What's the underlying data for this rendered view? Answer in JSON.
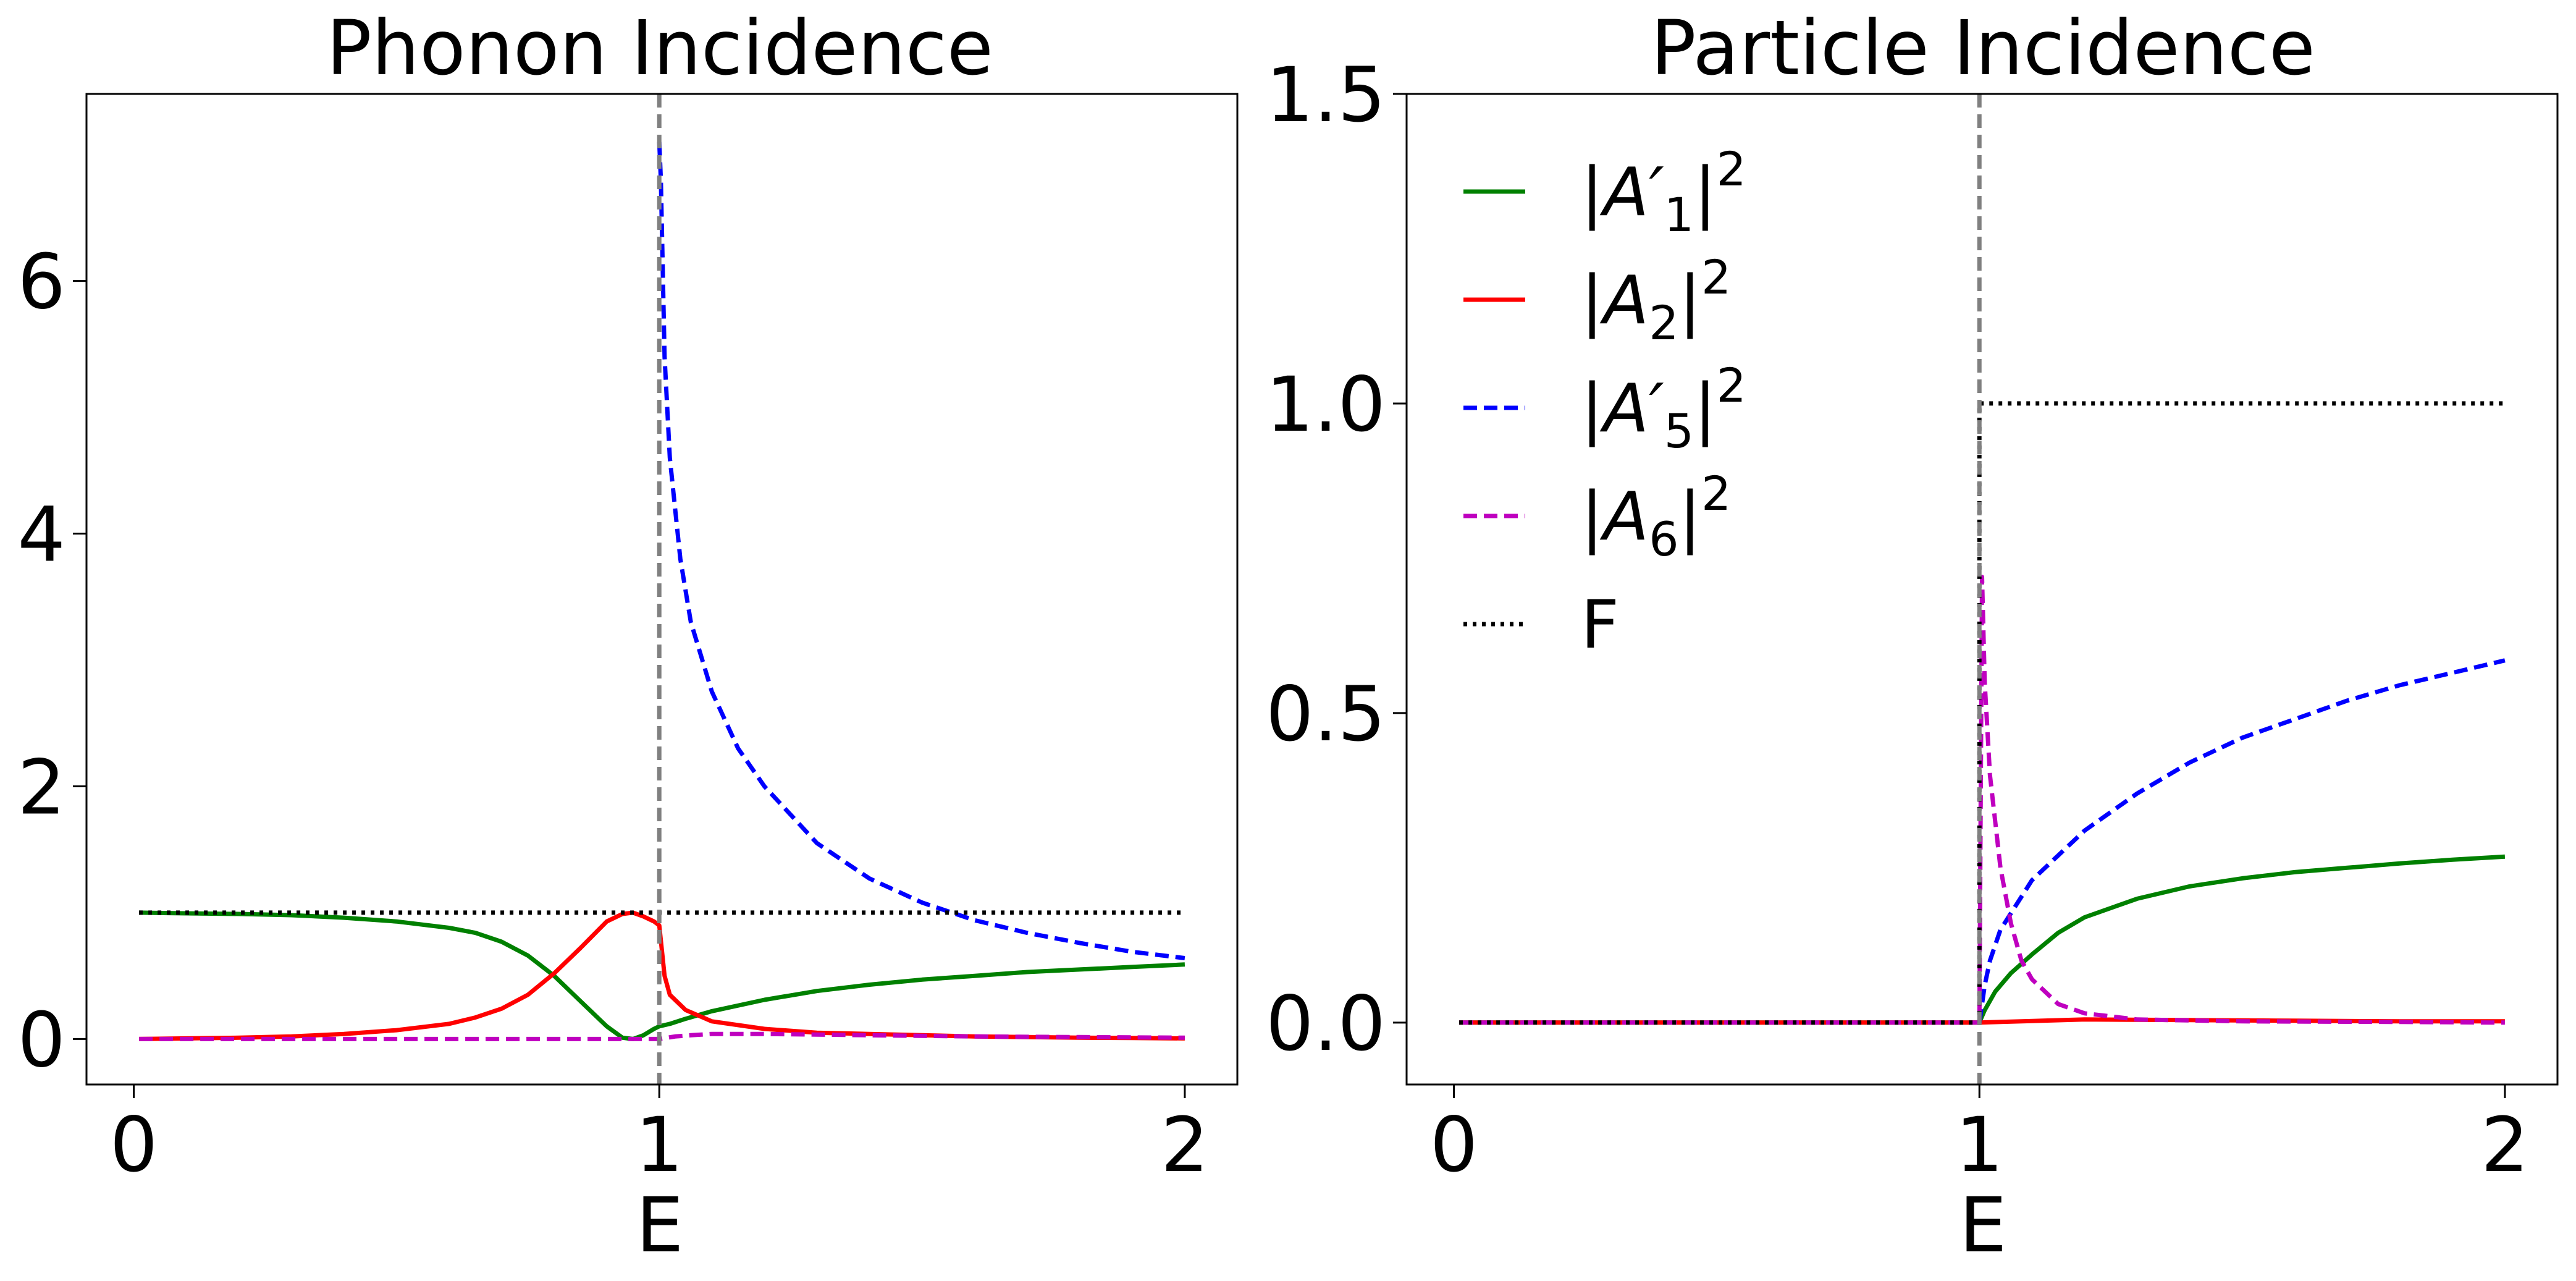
{
  "chart_data": [
    {
      "type": "line",
      "title": "Phonon Incidence",
      "xlabel": "E",
      "ylabel": "",
      "xlim": [
        -0.09,
        2.1
      ],
      "ylim": [
        -0.36,
        7.48
      ],
      "xticks": [
        0,
        1,
        2
      ],
      "xtick_labels": [
        "0",
        "1",
        "2"
      ],
      "yticks": [
        0,
        2,
        4,
        6
      ],
      "ytick_labels": [
        "0",
        "2",
        "4",
        "6"
      ],
      "vline": {
        "x": 1.0,
        "color": "#808080",
        "style": "dashed"
      },
      "legend": null,
      "series": [
        {
          "name": "|A'1|^2",
          "color": "#008000",
          "style": "solid",
          "x": [
            0.01,
            0.1,
            0.2,
            0.3,
            0.4,
            0.5,
            0.6,
            0.65,
            0.7,
            0.75,
            0.8,
            0.85,
            0.9,
            0.93,
            0.95,
            0.97,
            0.99,
            1.0,
            1.02,
            1.05,
            1.1,
            1.2,
            1.3,
            1.4,
            1.5,
            1.6,
            1.7,
            1.8,
            1.9,
            2.0
          ],
          "y": [
            1.0,
            0.995,
            0.99,
            0.98,
            0.96,
            0.93,
            0.88,
            0.84,
            0.77,
            0.66,
            0.5,
            0.3,
            0.1,
            0.01,
            0.0,
            0.03,
            0.08,
            0.1,
            0.12,
            0.16,
            0.22,
            0.31,
            0.38,
            0.43,
            0.47,
            0.5,
            0.53,
            0.55,
            0.57,
            0.59
          ]
        },
        {
          "name": "|A2|^2",
          "color": "#ff0000",
          "style": "solid",
          "x": [
            0.01,
            0.1,
            0.2,
            0.3,
            0.4,
            0.5,
            0.6,
            0.65,
            0.7,
            0.75,
            0.8,
            0.85,
            0.9,
            0.93,
            0.95,
            0.97,
            0.99,
            1.0,
            1.01,
            1.02,
            1.05,
            1.1,
            1.2,
            1.3,
            1.4,
            1.5,
            1.6,
            1.7,
            1.8,
            1.9,
            2.0
          ],
          "y": [
            0.0,
            0.005,
            0.01,
            0.02,
            0.04,
            0.07,
            0.12,
            0.17,
            0.24,
            0.35,
            0.52,
            0.72,
            0.93,
            0.99,
            1.0,
            0.97,
            0.93,
            0.9,
            0.5,
            0.35,
            0.23,
            0.14,
            0.08,
            0.05,
            0.04,
            0.03,
            0.02,
            0.015,
            0.01,
            0.008,
            0.005
          ]
        },
        {
          "name": "|A'5|^2",
          "color": "#0000ff",
          "style": "dashed",
          "x": [
            1.0,
            1.003,
            1.01,
            1.02,
            1.04,
            1.06,
            1.1,
            1.15,
            1.2,
            1.3,
            1.4,
            1.5,
            1.6,
            1.7,
            1.8,
            1.9,
            2.0
          ],
          "y": [
            7.1,
            6.8,
            5.4,
            4.6,
            3.8,
            3.3,
            2.75,
            2.3,
            2.0,
            1.55,
            1.27,
            1.08,
            0.94,
            0.84,
            0.76,
            0.69,
            0.64
          ]
        },
        {
          "name": "|A6|^2",
          "color": "#bf00bf",
          "style": "dashed",
          "x": [
            0.01,
            0.5,
            0.95,
            1.0,
            1.03,
            1.06,
            1.1,
            1.2,
            1.3,
            1.4,
            1.6,
            1.8,
            2.0
          ],
          "y": [
            0.0,
            0.0,
            0.0,
            0.0,
            0.02,
            0.03,
            0.04,
            0.04,
            0.035,
            0.03,
            0.02,
            0.015,
            0.01
          ]
        },
        {
          "name": "F",
          "color": "#000000",
          "style": "dotted",
          "x": [
            0.01,
            2.0
          ],
          "y": [
            1.0,
            1.0
          ]
        }
      ]
    },
    {
      "type": "line",
      "title": "Particle Incidence",
      "xlabel": "E",
      "ylabel": "",
      "xlim": [
        -0.09,
        2.1
      ],
      "ylim": [
        -0.1,
        1.5
      ],
      "xticks": [
        0,
        1,
        2
      ],
      "xtick_labels": [
        "0",
        "1",
        "2"
      ],
      "yticks": [
        0.0,
        0.5,
        1.0,
        1.5
      ],
      "ytick_labels": [
        "0.0",
        "0.5",
        "1.0",
        "1.5"
      ],
      "vline": {
        "x": 1.0,
        "color": "#808080",
        "style": "dashed"
      },
      "legend": {
        "location": "upper-left",
        "entries": [
          {
            "base": "|A′",
            "sub": "1",
            "tail": "|",
            "sup": "2"
          },
          {
            "base": "|A",
            "sub": "2",
            "tail": "|",
            "sup": "2"
          },
          {
            "base": "|A′",
            "sub": "5",
            "tail": "|",
            "sup": "2"
          },
          {
            "base": "|A",
            "sub": "6",
            "tail": "|",
            "sup": "2"
          },
          {
            "base": "F",
            "sub": "",
            "tail": "",
            "sup": ""
          }
        ]
      },
      "series": [
        {
          "name": "|A'1|^2",
          "color": "#008000",
          "style": "solid",
          "x": [
            0.01,
            1.0,
            1.01,
            1.03,
            1.06,
            1.1,
            1.15,
            1.2,
            1.3,
            1.4,
            1.5,
            1.6,
            1.7,
            1.8,
            1.9,
            2.0
          ],
          "y": [
            0.0,
            0.0,
            0.02,
            0.05,
            0.08,
            0.11,
            0.145,
            0.17,
            0.2,
            0.22,
            0.233,
            0.243,
            0.25,
            0.257,
            0.263,
            0.268
          ]
        },
        {
          "name": "|A2|^2",
          "color": "#ff0000",
          "style": "solid",
          "x": [
            0.01,
            1.0,
            1.2,
            1.4,
            1.6,
            1.8,
            2.0
          ],
          "y": [
            0.0,
            0.0,
            0.005,
            0.004,
            0.003,
            0.002,
            0.002
          ]
        },
        {
          "name": "|A'5|^2",
          "color": "#0000ff",
          "style": "dashed",
          "x": [
            1.0,
            1.01,
            1.02,
            1.04,
            1.07,
            1.1,
            1.15,
            1.2,
            1.3,
            1.4,
            1.5,
            1.6,
            1.7,
            1.8,
            1.9,
            2.0
          ],
          "y": [
            0.0,
            0.06,
            0.1,
            0.15,
            0.19,
            0.23,
            0.27,
            0.31,
            0.37,
            0.42,
            0.46,
            0.49,
            0.52,
            0.545,
            0.565,
            0.585
          ]
        },
        {
          "name": "|A6|^2",
          "color": "#bf00bf",
          "style": "dashed",
          "x": [
            0.01,
            1.0,
            1.005,
            1.01,
            1.02,
            1.04,
            1.06,
            1.08,
            1.1,
            1.15,
            1.2,
            1.3,
            1.5,
            1.8,
            2.0
          ],
          "y": [
            0.0,
            0.0,
            0.72,
            0.55,
            0.4,
            0.25,
            0.16,
            0.1,
            0.07,
            0.03,
            0.015,
            0.005,
            0.002,
            0.001,
            0.0
          ]
        },
        {
          "name": "F",
          "color": "#000000",
          "style": "dotted",
          "x": [
            0.01,
            1.0,
            1.0,
            2.0
          ],
          "y": [
            0.0,
            0.0,
            1.0,
            1.0
          ]
        }
      ]
    }
  ]
}
